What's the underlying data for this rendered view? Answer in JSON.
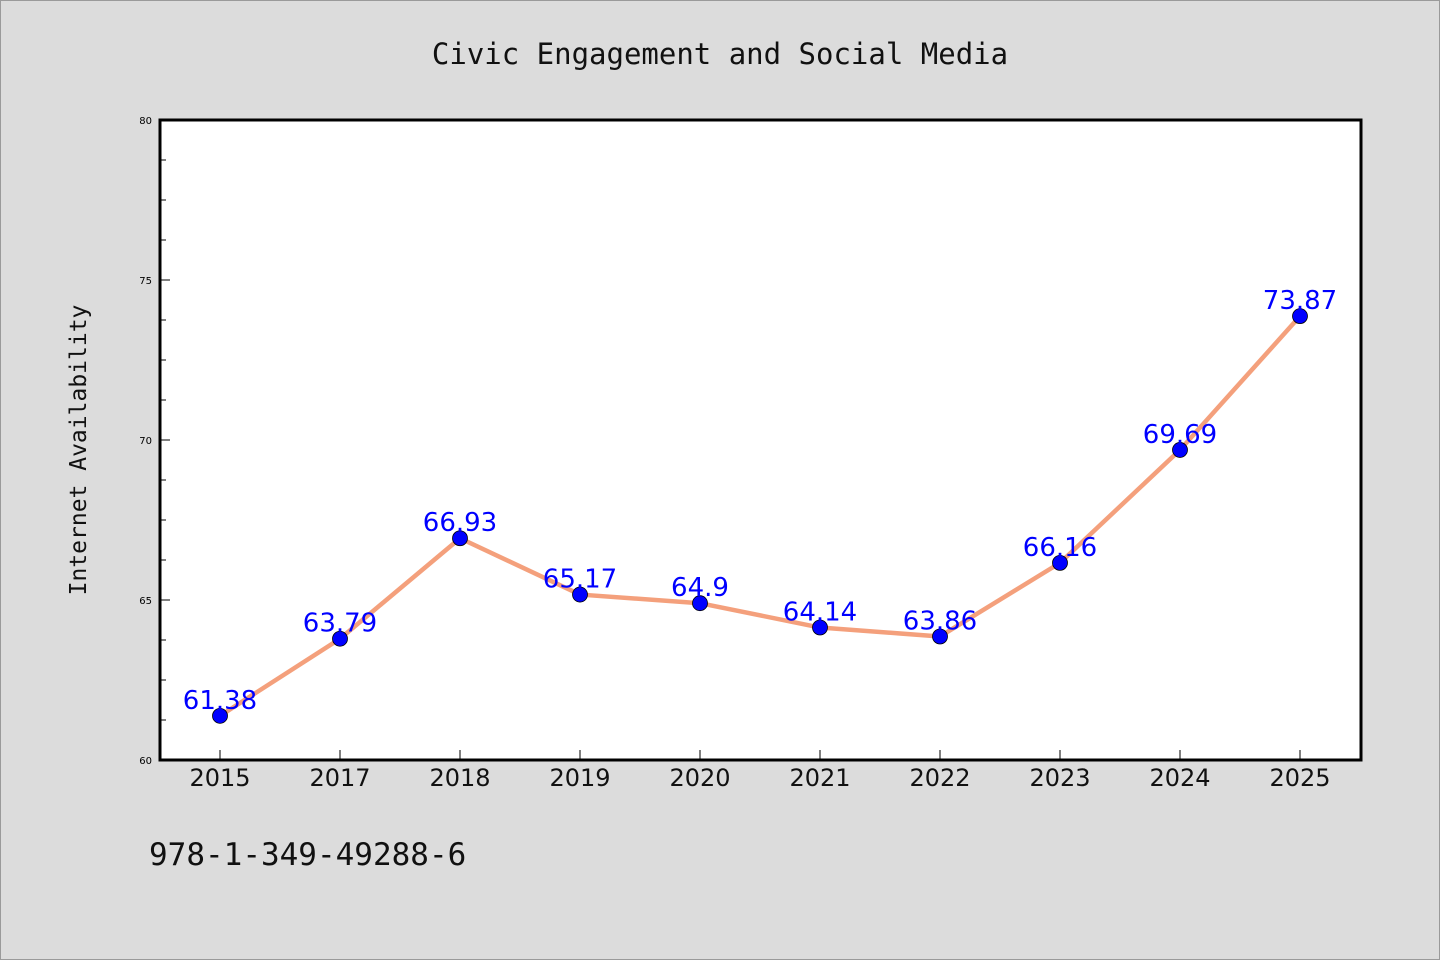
{
  "chart_data": {
    "type": "line",
    "title": "Civic Engagement and Social Media",
    "xlabel": "",
    "ylabel": "Internet Availability",
    "categories": [
      "2015",
      "2017",
      "2018",
      "2019",
      "2020",
      "2021",
      "2022",
      "2023",
      "2024",
      "2025"
    ],
    "series": [
      {
        "values": [
          61.38,
          63.79,
          66.93,
          65.17,
          64.9,
          64.14,
          63.86,
          66.16,
          69.69,
          73.87
        ],
        "data_labels": [
          "61.38",
          "63.79",
          "66.93",
          "65.17",
          "64.9",
          "64.14",
          "63.86",
          "66.16",
          "69.69",
          "73.87"
        ],
        "line_color": "#f4a07c",
        "marker_color": "#0000ff"
      }
    ],
    "ylim": [
      60,
      80
    ],
    "yticks": [
      "60",
      "65",
      "70",
      "75",
      "80"
    ],
    "grid": false,
    "legend": "none"
  },
  "footer": {
    "isbn": "978-1-349-49288-6"
  }
}
